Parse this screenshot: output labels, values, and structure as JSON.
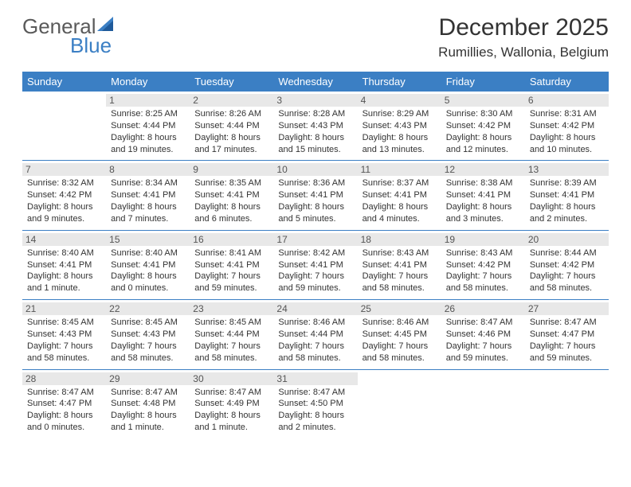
{
  "logo": {
    "text1": "General",
    "text2": "Blue"
  },
  "title": "December 2025",
  "location": "Rumillies, Wallonia, Belgium",
  "colors": {
    "header_bg": "#3b7fc4",
    "header_fg": "#ffffff",
    "daynum_bg": "#e8e8e8",
    "border": "#3b7fc4",
    "text": "#333333",
    "logo_gray": "#5a5a5a",
    "logo_blue": "#3b7fc4"
  },
  "typography": {
    "title_fontsize": 30,
    "location_fontsize": 17,
    "header_fontsize": 13,
    "cell_fontsize": 11
  },
  "weekdays": [
    "Sunday",
    "Monday",
    "Tuesday",
    "Wednesday",
    "Thursday",
    "Friday",
    "Saturday"
  ],
  "weeks": [
    [
      {
        "day": "",
        "sunrise": "",
        "sunset": "",
        "daylight": ""
      },
      {
        "day": "1",
        "sunrise": "Sunrise: 8:25 AM",
        "sunset": "Sunset: 4:44 PM",
        "daylight": "Daylight: 8 hours and 19 minutes."
      },
      {
        "day": "2",
        "sunrise": "Sunrise: 8:26 AM",
        "sunset": "Sunset: 4:44 PM",
        "daylight": "Daylight: 8 hours and 17 minutes."
      },
      {
        "day": "3",
        "sunrise": "Sunrise: 8:28 AM",
        "sunset": "Sunset: 4:43 PM",
        "daylight": "Daylight: 8 hours and 15 minutes."
      },
      {
        "day": "4",
        "sunrise": "Sunrise: 8:29 AM",
        "sunset": "Sunset: 4:43 PM",
        "daylight": "Daylight: 8 hours and 13 minutes."
      },
      {
        "day": "5",
        "sunrise": "Sunrise: 8:30 AM",
        "sunset": "Sunset: 4:42 PM",
        "daylight": "Daylight: 8 hours and 12 minutes."
      },
      {
        "day": "6",
        "sunrise": "Sunrise: 8:31 AM",
        "sunset": "Sunset: 4:42 PM",
        "daylight": "Daylight: 8 hours and 10 minutes."
      }
    ],
    [
      {
        "day": "7",
        "sunrise": "Sunrise: 8:32 AM",
        "sunset": "Sunset: 4:42 PM",
        "daylight": "Daylight: 8 hours and 9 minutes."
      },
      {
        "day": "8",
        "sunrise": "Sunrise: 8:34 AM",
        "sunset": "Sunset: 4:41 PM",
        "daylight": "Daylight: 8 hours and 7 minutes."
      },
      {
        "day": "9",
        "sunrise": "Sunrise: 8:35 AM",
        "sunset": "Sunset: 4:41 PM",
        "daylight": "Daylight: 8 hours and 6 minutes."
      },
      {
        "day": "10",
        "sunrise": "Sunrise: 8:36 AM",
        "sunset": "Sunset: 4:41 PM",
        "daylight": "Daylight: 8 hours and 5 minutes."
      },
      {
        "day": "11",
        "sunrise": "Sunrise: 8:37 AM",
        "sunset": "Sunset: 4:41 PM",
        "daylight": "Daylight: 8 hours and 4 minutes."
      },
      {
        "day": "12",
        "sunrise": "Sunrise: 8:38 AM",
        "sunset": "Sunset: 4:41 PM",
        "daylight": "Daylight: 8 hours and 3 minutes."
      },
      {
        "day": "13",
        "sunrise": "Sunrise: 8:39 AM",
        "sunset": "Sunset: 4:41 PM",
        "daylight": "Daylight: 8 hours and 2 minutes."
      }
    ],
    [
      {
        "day": "14",
        "sunrise": "Sunrise: 8:40 AM",
        "sunset": "Sunset: 4:41 PM",
        "daylight": "Daylight: 8 hours and 1 minute."
      },
      {
        "day": "15",
        "sunrise": "Sunrise: 8:40 AM",
        "sunset": "Sunset: 4:41 PM",
        "daylight": "Daylight: 8 hours and 0 minutes."
      },
      {
        "day": "16",
        "sunrise": "Sunrise: 8:41 AM",
        "sunset": "Sunset: 4:41 PM",
        "daylight": "Daylight: 7 hours and 59 minutes."
      },
      {
        "day": "17",
        "sunrise": "Sunrise: 8:42 AM",
        "sunset": "Sunset: 4:41 PM",
        "daylight": "Daylight: 7 hours and 59 minutes."
      },
      {
        "day": "18",
        "sunrise": "Sunrise: 8:43 AM",
        "sunset": "Sunset: 4:41 PM",
        "daylight": "Daylight: 7 hours and 58 minutes."
      },
      {
        "day": "19",
        "sunrise": "Sunrise: 8:43 AM",
        "sunset": "Sunset: 4:42 PM",
        "daylight": "Daylight: 7 hours and 58 minutes."
      },
      {
        "day": "20",
        "sunrise": "Sunrise: 8:44 AM",
        "sunset": "Sunset: 4:42 PM",
        "daylight": "Daylight: 7 hours and 58 minutes."
      }
    ],
    [
      {
        "day": "21",
        "sunrise": "Sunrise: 8:45 AM",
        "sunset": "Sunset: 4:43 PM",
        "daylight": "Daylight: 7 hours and 58 minutes."
      },
      {
        "day": "22",
        "sunrise": "Sunrise: 8:45 AM",
        "sunset": "Sunset: 4:43 PM",
        "daylight": "Daylight: 7 hours and 58 minutes."
      },
      {
        "day": "23",
        "sunrise": "Sunrise: 8:45 AM",
        "sunset": "Sunset: 4:44 PM",
        "daylight": "Daylight: 7 hours and 58 minutes."
      },
      {
        "day": "24",
        "sunrise": "Sunrise: 8:46 AM",
        "sunset": "Sunset: 4:44 PM",
        "daylight": "Daylight: 7 hours and 58 minutes."
      },
      {
        "day": "25",
        "sunrise": "Sunrise: 8:46 AM",
        "sunset": "Sunset: 4:45 PM",
        "daylight": "Daylight: 7 hours and 58 minutes."
      },
      {
        "day": "26",
        "sunrise": "Sunrise: 8:47 AM",
        "sunset": "Sunset: 4:46 PM",
        "daylight": "Daylight: 7 hours and 59 minutes."
      },
      {
        "day": "27",
        "sunrise": "Sunrise: 8:47 AM",
        "sunset": "Sunset: 4:47 PM",
        "daylight": "Daylight: 7 hours and 59 minutes."
      }
    ],
    [
      {
        "day": "28",
        "sunrise": "Sunrise: 8:47 AM",
        "sunset": "Sunset: 4:47 PM",
        "daylight": "Daylight: 8 hours and 0 minutes."
      },
      {
        "day": "29",
        "sunrise": "Sunrise: 8:47 AM",
        "sunset": "Sunset: 4:48 PM",
        "daylight": "Daylight: 8 hours and 1 minute."
      },
      {
        "day": "30",
        "sunrise": "Sunrise: 8:47 AM",
        "sunset": "Sunset: 4:49 PM",
        "daylight": "Daylight: 8 hours and 1 minute."
      },
      {
        "day": "31",
        "sunrise": "Sunrise: 8:47 AM",
        "sunset": "Sunset: 4:50 PM",
        "daylight": "Daylight: 8 hours and 2 minutes."
      },
      {
        "day": "",
        "sunrise": "",
        "sunset": "",
        "daylight": ""
      },
      {
        "day": "",
        "sunrise": "",
        "sunset": "",
        "daylight": ""
      },
      {
        "day": "",
        "sunrise": "",
        "sunset": "",
        "daylight": ""
      }
    ]
  ]
}
